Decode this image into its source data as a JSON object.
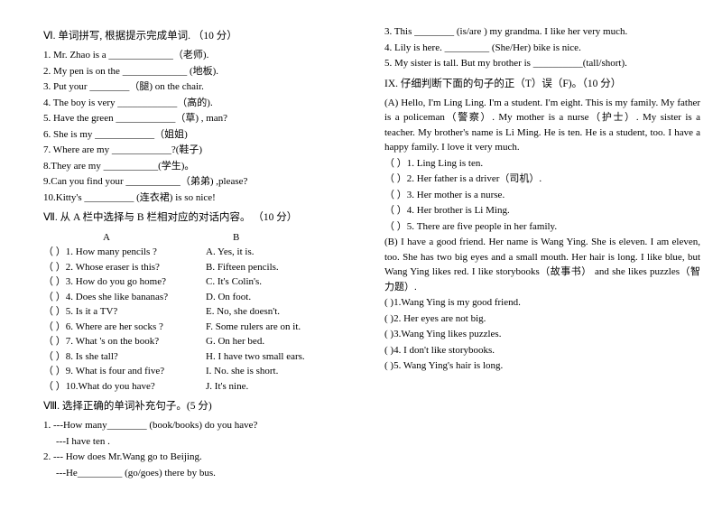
{
  "left": {
    "s6": {
      "title": "Ⅵ. 单词拼写, 根据提示完成单词.  （10 分）",
      "items": [
        "1. Mr. Zhao is a _____________（老师).",
        "2. My pen is on the _____________ (地板).",
        "3. Put your ________（腿) on the chair.",
        "4. The boy is very ____________（高的).",
        "5. Have the green   ____________（草) , man?",
        "6. She is my ____________（姐姐)",
        "7. Where are my ____________?(鞋子)",
        "8.They are my ___________(学生)。",
        "9.Can you find your ___________（弟弟)  ,please?",
        "10.Kitty's       __________ (连衣裙) is so nice!"
      ]
    },
    "s7": {
      "title": "Ⅶ. 从 A 栏中选择与 B 栏相对应的对话内容。 （10 分）",
      "headA": "A",
      "headB": "B",
      "rows": [
        {
          "a": "（   ）1. How many pencils ?",
          "b": "A. Yes, it is."
        },
        {
          "a": "（   ）2. Whose eraser is this?",
          "b": "B. Fifteen pencils."
        },
        {
          "a": "（   ）3. How do you go home?",
          "b": "C. It's Colin's."
        },
        {
          "a": "（   ）4. Does she like bananas?",
          "b": " D. On foot."
        },
        {
          "a": "（   ）5. Is it a TV?",
          "b": "E. No,  she doesn't."
        },
        {
          "a": "（   ）6. Where are her socks ?",
          "b": "F. Some rulers are on it."
        },
        {
          "a": "（   ）7. What 's on the book?",
          "b": "G. On her bed."
        },
        {
          "a": "（   ）8. Is she tall?",
          "b": "H. I have two small ears."
        },
        {
          "a": "（   ）9. What is four and five?",
          "b": "I. No. she is short."
        },
        {
          "a": "（   ）10.What do you have?",
          "b": "J. It's nine."
        }
      ]
    },
    "s8": {
      "title": "Ⅷ. 选择正确的单词补充句子。(5 分)",
      "items": [
        "1. ---How many________ (book/books) do you have?",
        "     ---I have ten .",
        "2. --- How does Mr.Wang go to Beijing.",
        "     ---He_________ (go/goes) there by bus."
      ]
    }
  },
  "right": {
    "top": [
      "3. This ________ (is/are ) my grandma. I like her very much.",
      "4. Lily is here. _________ (She/Her) bike is nice.",
      "5. My sister is tall. But my brother is __________(tall/short)."
    ],
    "s9title": "IX. 仔细判断下面的句子的正（T）误（F)。（10 分）",
    "pA": "(A)       Hello,  I'm Ling Ling. I'm a student. I'm eight. This is my family. My father is a policeman（警察）. My mother is a nurse（护士）. My sister is a teacher. My brother's name is Li Ming.    He is ten. He is a student, too. I have a happy family. I love it very much.",
    "qA": [
      "（      ）1. Ling Ling is ten.",
      "（      ）2. Her father is a driver（司机）.",
      "（      ）3. Her mother is a nurse.",
      "（      ）4. Her brother is Li Ming.",
      "（      ）5. There are five people in her family."
    ],
    "pB": "(B)     I have a good friend. Her name is Wang Ying. She is eleven. I am eleven, too. She has two big eyes and a small mouth. Her hair is long. I like blue, but Wang Ying likes red. I like storybooks（故事书）  and she likes puzzles（智力题）.",
    "qB": [
      "(         )1.Wang Ying is my good friend.",
      "(         )2. Her eyes are not big.",
      "(         )3.Wang Ying likes puzzles.",
      "(         )4. I don't like storybooks.",
      "(         )5. Wang Ying's hair is long."
    ]
  }
}
